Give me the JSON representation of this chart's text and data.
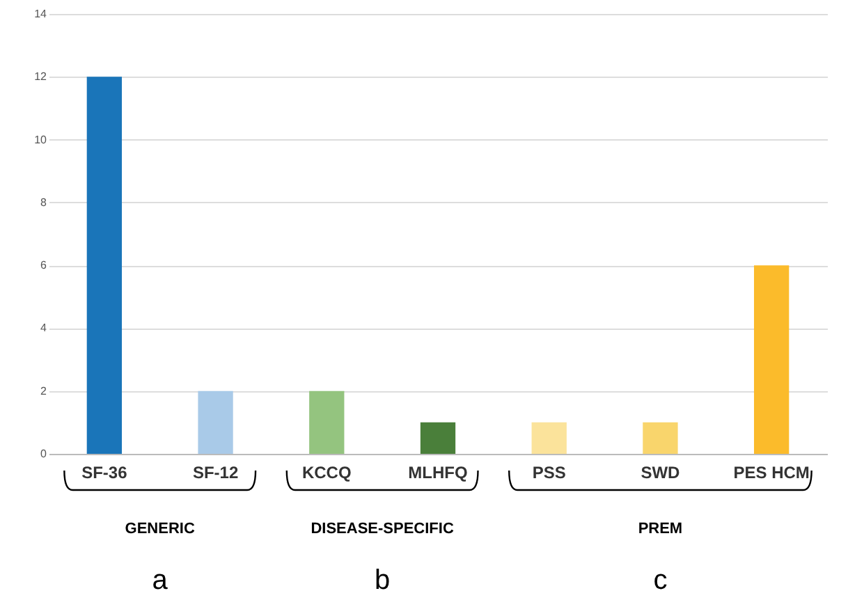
{
  "chart_data": {
    "type": "bar",
    "categories": [
      "SF-36",
      "SF-12",
      "KCCQ",
      "MLHFQ",
      "PSS",
      "SWD",
      "PES HCM"
    ],
    "values": [
      12,
      2,
      2,
      1,
      1,
      1,
      6
    ],
    "colors": [
      "#1a75b9",
      "#a9cae8",
      "#94c47f",
      "#4a7f3a",
      "#fbe39b",
      "#f9d56c",
      "#fbbb2b"
    ],
    "ylim": [
      0,
      14
    ],
    "yticks": [
      0,
      2,
      4,
      6,
      8,
      10,
      12,
      14
    ],
    "grid": "y",
    "annotations": [
      "GENERIC",
      "a",
      "DISEASE-SPECIFIC",
      "b",
      "PREM",
      "c"
    ]
  }
}
